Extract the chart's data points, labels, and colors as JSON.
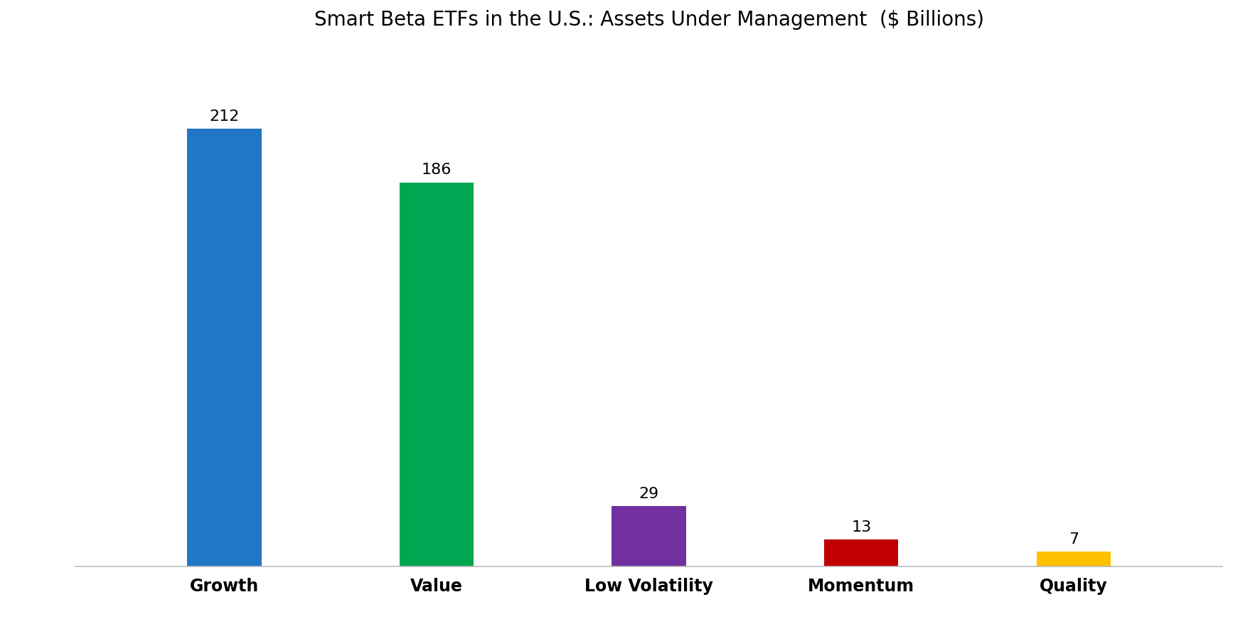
{
  "title": "Smart Beta ETFs in the U.S.: Assets Under Management  ($ Billions)",
  "categories": [
    "Growth",
    "Value",
    "Low Volatility",
    "Momentum",
    "Quality"
  ],
  "values": [
    212,
    186,
    29,
    13,
    7
  ],
  "bar_colors": [
    "#2176C7",
    "#00A651",
    "#7030A0",
    "#C00000",
    "#FFC000"
  ],
  "background_color": "#ffffff",
  "title_fontsize": 20,
  "label_fontsize": 17,
  "value_fontsize": 16,
  "ylim": [
    0,
    250
  ],
  "bar_width": 0.35
}
